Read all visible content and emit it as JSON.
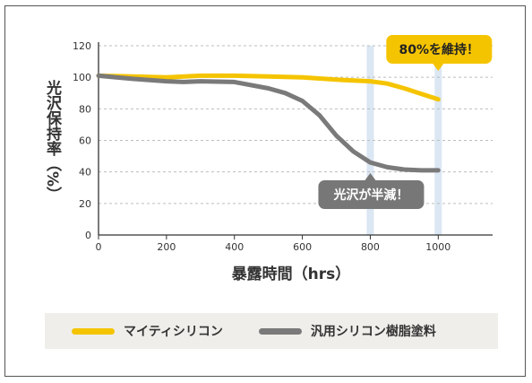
{
  "chart_data": {
    "type": "line",
    "title": "",
    "xlabel": "暴露時間（hrs）",
    "ylabel": "光沢保持率（%）",
    "xlim": [
      0,
      1160
    ],
    "ylim": [
      0,
      120
    ],
    "xticks": [
      0,
      200,
      400,
      600,
      800,
      1000
    ],
    "yticks": [
      0,
      20,
      40,
      60,
      80,
      100,
      120
    ],
    "grid": true,
    "series": [
      {
        "name": "マイティシリコン",
        "color": "#f5c400",
        "x": [
          0,
          100,
          200,
          300,
          400,
          500,
          600,
          700,
          800,
          850,
          900,
          950,
          1000
        ],
        "y": [
          101,
          100.5,
          100,
          101,
          101,
          100.5,
          100,
          98.5,
          97.5,
          96,
          93,
          89.5,
          86
        ]
      },
      {
        "name": "汎用シリコン樹脂塗料",
        "color": "#7a7a7a",
        "x": [
          0,
          100,
          200,
          250,
          300,
          400,
          500,
          550,
          600,
          650,
          700,
          750,
          800,
          850,
          900,
          950,
          1000
        ],
        "y": [
          101,
          99,
          97.5,
          97,
          97.5,
          97,
          93,
          90,
          85,
          76,
          63,
          53,
          46,
          43,
          41.5,
          41,
          41
        ]
      }
    ],
    "highlights": [
      800,
      1000
    ],
    "annotations": [
      {
        "text": "光沢が半減！",
        "x": 800,
        "style": "gray"
      },
      {
        "text": "80%を維持！",
        "x": 1000,
        "style": "yellow"
      }
    ]
  }
}
